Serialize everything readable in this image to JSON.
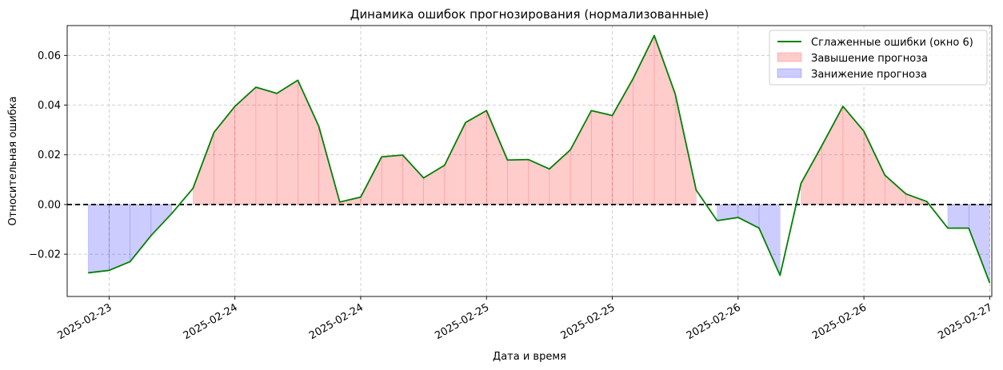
{
  "chart_data": {
    "type": "line",
    "title": "Динамика ошибок прогнозирования (нормализованные)",
    "xlabel": "Дата и время",
    "ylabel": "Относительная ошибка",
    "xlim": [
      -1,
      43.1
    ],
    "ylim": [
      -0.037,
      0.072
    ],
    "grid": true,
    "legend_position": "top-right",
    "zero_line": {
      "y": 0,
      "color": "#000000",
      "style": "dashed"
    },
    "x_ticks": [
      {
        "x": 1,
        "label": "2025-02-23"
      },
      {
        "x": 7,
        "label": "2025-02-24"
      },
      {
        "x": 13,
        "label": "2025-02-24"
      },
      {
        "x": 19,
        "label": "2025-02-25"
      },
      {
        "x": 25,
        "label": "2025-02-25"
      },
      {
        "x": 31,
        "label": "2025-02-26"
      },
      {
        "x": 37,
        "label": "2025-02-26"
      },
      {
        "x": 43,
        "label": "2025-02-27"
      }
    ],
    "y_ticks": [
      {
        "y": -0.02,
        "label": "−0.02"
      },
      {
        "y": 0.0,
        "label": "0.00"
      },
      {
        "y": 0.02,
        "label": "0.02"
      },
      {
        "y": 0.04,
        "label": "0.04"
      },
      {
        "y": 0.06,
        "label": "0.06"
      }
    ],
    "series": [
      {
        "name": "Сглаженные ошибки (окно 6)",
        "color": "#008000",
        "x": [
          0,
          1,
          2,
          3,
          4,
          5,
          6,
          7,
          8,
          9,
          10,
          11,
          12,
          13,
          14,
          15,
          16,
          17,
          18,
          19,
          20,
          21,
          22,
          23,
          24,
          25,
          26,
          27,
          28,
          29,
          30,
          31,
          32,
          33,
          34,
          35,
          36,
          37,
          38,
          39,
          40,
          41,
          42,
          43
        ],
        "values": [
          -0.0275,
          -0.0265,
          -0.023,
          -0.0125,
          -0.0035,
          0.0065,
          0.029,
          0.0395,
          0.0472,
          0.0447,
          0.05,
          0.0315,
          0.001,
          0.003,
          0.0192,
          0.0199,
          0.0107,
          0.0158,
          0.033,
          0.0378,
          0.0179,
          0.0181,
          0.0143,
          0.022,
          0.0378,
          0.0358,
          0.0508,
          0.068,
          0.0445,
          0.0058,
          -0.0065,
          -0.0052,
          -0.0095,
          -0.0285,
          0.0085,
          0.0238,
          0.0395,
          0.0295,
          0.0118,
          0.0043,
          0.0012,
          -0.0095,
          -0.0095,
          -0.0315
        ]
      }
    ],
    "fills": [
      {
        "name": "Завышение прогноза",
        "color": "#ff0000",
        "alpha": 0.2,
        "condition": "above_zero"
      },
      {
        "name": "Занижение прогноза",
        "color": "#0000ff",
        "alpha": 0.2,
        "condition": "below_zero"
      }
    ]
  }
}
